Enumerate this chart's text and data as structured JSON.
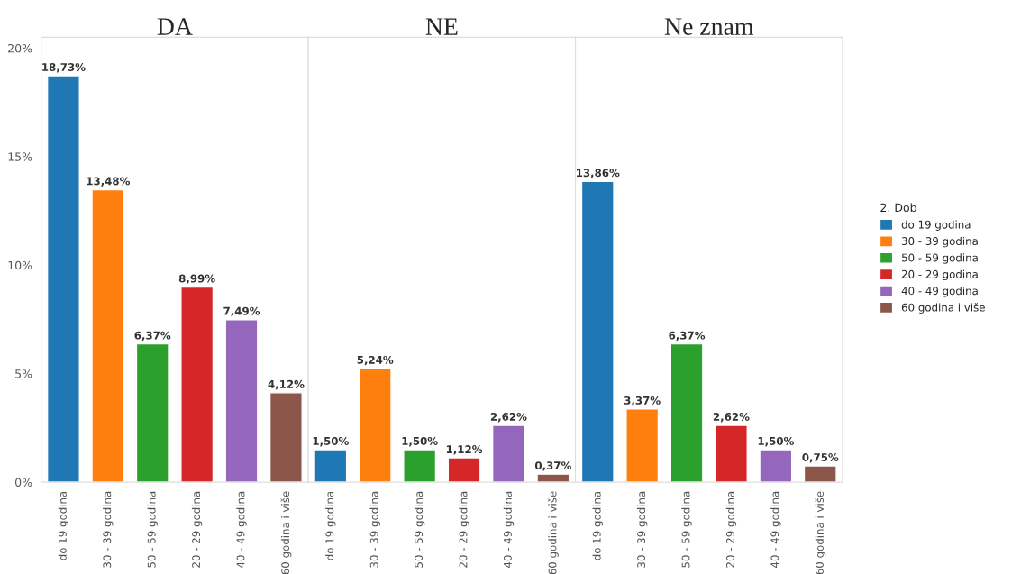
{
  "chart_data": [
    {
      "type": "bar",
      "title": "DA",
      "categories": [
        "do 19 godina",
        "30 - 39 godina",
        "50 - 59 godina",
        "20 - 29 godina",
        "40 - 49 godina",
        "60 godina i više"
      ],
      "series": [
        {
          "name": "do 19 godina",
          "color": "#1f77b4",
          "values": [
            18.73,
            null,
            null,
            null,
            null,
            null
          ],
          "value_labels": [
            "18,73%",
            null,
            null,
            null,
            null,
            null
          ]
        },
        {
          "name": "30 - 39 godina",
          "color": "#ff7f0e",
          "values": [
            null,
            13.48,
            null,
            null,
            null,
            null
          ],
          "value_labels": [
            null,
            "13,48%",
            null,
            null,
            null,
            null
          ]
        },
        {
          "name": "50 - 59 godina",
          "color": "#2ca02c",
          "values": [
            null,
            null,
            6.37,
            null,
            null,
            null
          ],
          "value_labels": [
            null,
            null,
            "6,37%",
            null,
            null,
            null
          ]
        },
        {
          "name": "20 - 29 godina",
          "color": "#d62728",
          "values": [
            null,
            null,
            null,
            8.99,
            null,
            null
          ],
          "value_labels": [
            null,
            null,
            null,
            "8,99%",
            null,
            null
          ]
        },
        {
          "name": "40 - 49 godina",
          "color": "#9467bd",
          "values": [
            null,
            null,
            null,
            null,
            7.49,
            null
          ],
          "value_labels": [
            null,
            null,
            null,
            null,
            "7,49%",
            null
          ]
        },
        {
          "name": "60 godina i više",
          "color": "#8c564b",
          "values": [
            null,
            null,
            null,
            null,
            null,
            4.12
          ],
          "value_labels": [
            null,
            null,
            null,
            null,
            null,
            "4,12%"
          ]
        }
      ],
      "ylim": [
        0,
        20.5
      ],
      "yticks": [
        {
          "value": 0,
          "label": "0%"
        },
        {
          "value": 5,
          "label": "5%"
        },
        {
          "value": 10,
          "label": "10%"
        },
        {
          "value": 15,
          "label": "15%"
        },
        {
          "value": 20,
          "label": "20%"
        }
      ],
      "legend": "right",
      "legend_title": "2. Dob"
    },
    {
      "type": "bar",
      "title": "NE",
      "categories": [
        "do 19 godina",
        "30 - 39 godina",
        "50 - 59 godina",
        "20 - 29 godina",
        "40 - 49 godina",
        "60 godina i više"
      ],
      "values": [
        1.5,
        5.24,
        1.5,
        1.12,
        2.62,
        0.37
      ],
      "value_labels": [
        "1,50%",
        "5,24%",
        "1,50%",
        "1,12%",
        "2,62%",
        "0,37%"
      ],
      "colors": [
        "#1f77b4",
        "#ff7f0e",
        "#2ca02c",
        "#d62728",
        "#9467bd",
        "#8c564b"
      ],
      "ylim": [
        0,
        20.5
      ],
      "tick_labels": "x"
    },
    {
      "type": "bar",
      "title": "Ne znam",
      "categories": [
        "do 19 godina",
        "30 - 39 godina",
        "50 - 59 godina",
        "20 - 29 godina",
        "40 - 49 godina",
        "60 godina i više"
      ],
      "values": [
        13.86,
        3.37,
        6.37,
        2.62,
        1.5,
        0.75
      ],
      "value_labels": [
        "13,86%",
        "3,37%",
        "6,37%",
        "2,62%",
        "1,50%",
        "0,75%"
      ],
      "colors": [
        "#1f77b4",
        "#ff7f0e",
        "#2ca02c",
        "#d62728",
        "#9467bd",
        "#8c564b"
      ],
      "ylim": [
        0,
        20.5
      ],
      "tick_labels": "x"
    }
  ]
}
